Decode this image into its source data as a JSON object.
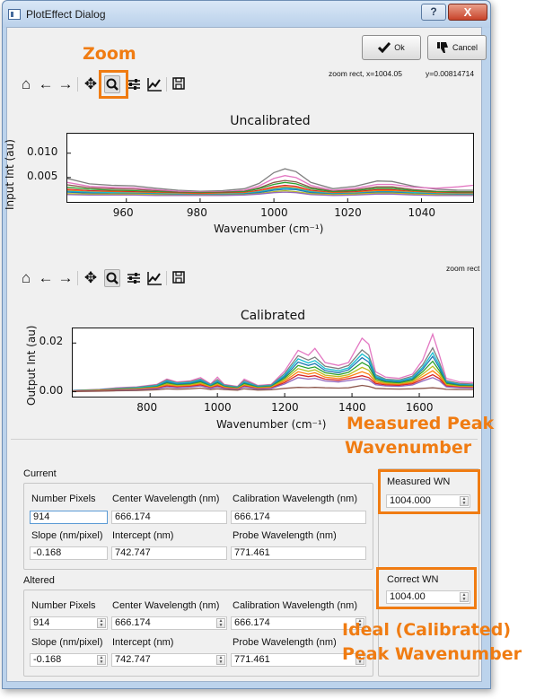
{
  "window": {
    "title": "PlotEffect Dialog",
    "help_symbol": "?",
    "close_symbol": "X"
  },
  "buttons": {
    "ok_label": "Ok",
    "cancel_label": "Cancel"
  },
  "status": {
    "top_left": "zoom rect, x=1004.05",
    "top_right": "y=0.00814714",
    "bottom": "zoom rect"
  },
  "toolbar_icons": [
    "home-icon",
    "back-arrow-icon",
    "forward-arrow-icon",
    "pan-icon",
    "zoom-icon",
    "configure-subplots-icon",
    "edit-axes-icon",
    "save-icon"
  ],
  "annotations": {
    "zoom": "Zoom",
    "measured_line1": "Measured Peak",
    "measured_line2": "Wavenumber",
    "ideal_line1": "Ideal (Calibrated)",
    "ideal_line2": "Peak Wavenumber",
    "color": "#f07c12"
  },
  "chart_data": [
    {
      "type": "line",
      "title": "Uncalibrated",
      "xlabel": "Wavenumber (cm⁻¹)",
      "ylabel": "Input Int (au)",
      "xlim": [
        944,
        1054
      ],
      "ylim": [
        0.0,
        0.014
      ],
      "x_ticks": [
        960,
        980,
        1000,
        1020,
        1040
      ],
      "y_ticks": [
        0.005,
        0.01
      ],
      "x_tick_labels": [
        "960",
        "980",
        "1000",
        "1020",
        "1040"
      ],
      "y_tick_labels": [
        "0.005",
        "0.010"
      ],
      "x": [
        944,
        950,
        956,
        962,
        968,
        974,
        980,
        986,
        992,
        996,
        1000,
        1003,
        1006,
        1010,
        1016,
        1022,
        1028,
        1032,
        1038,
        1044,
        1050,
        1054
      ],
      "series": [
        {
          "color": "#7f7f7f",
          "values": [
            0.0048,
            0.0037,
            0.0034,
            0.0033,
            0.0028,
            0.0024,
            0.0022,
            0.0023,
            0.0027,
            0.0038,
            0.006,
            0.0068,
            0.0062,
            0.004,
            0.0027,
            0.0032,
            0.0043,
            0.0042,
            0.0032,
            0.0026,
            0.0024,
            0.0024
          ]
        },
        {
          "color": "#e377c2",
          "values": [
            0.004,
            0.0032,
            0.003,
            0.0029,
            0.0025,
            0.0022,
            0.002,
            0.0021,
            0.0024,
            0.0033,
            0.0048,
            0.0054,
            0.005,
            0.0034,
            0.0024,
            0.0028,
            0.0036,
            0.0036,
            0.003,
            0.0028,
            0.0031,
            0.0034
          ]
        },
        {
          "color": "#8c564b",
          "values": [
            0.0035,
            0.0029,
            0.0027,
            0.0026,
            0.0023,
            0.002,
            0.0019,
            0.002,
            0.0022,
            0.0029,
            0.004,
            0.0044,
            0.0041,
            0.003,
            0.0022,
            0.0025,
            0.0031,
            0.0031,
            0.0025,
            0.0022,
            0.0021,
            0.0021
          ]
        },
        {
          "color": "#2ca02c",
          "values": [
            0.003,
            0.0026,
            0.0024,
            0.0023,
            0.0021,
            0.0019,
            0.0018,
            0.0019,
            0.0021,
            0.0027,
            0.0036,
            0.004,
            0.0037,
            0.0027,
            0.0021,
            0.0023,
            0.0028,
            0.0028,
            0.0023,
            0.0021,
            0.002,
            0.002
          ]
        },
        {
          "color": "#d62728",
          "values": [
            0.0026,
            0.0023,
            0.0022,
            0.0021,
            0.0019,
            0.0018,
            0.0017,
            0.0018,
            0.0019,
            0.0024,
            0.0031,
            0.0034,
            0.0032,
            0.0024,
            0.0019,
            0.0021,
            0.0025,
            0.0025,
            0.0021,
            0.0019,
            0.0018,
            0.0018
          ]
        },
        {
          "color": "#ff7f0e",
          "values": [
            0.0024,
            0.0021,
            0.002,
            0.0019,
            0.0018,
            0.0017,
            0.0016,
            0.0017,
            0.0018,
            0.0022,
            0.0028,
            0.0031,
            0.0029,
            0.0022,
            0.0018,
            0.0019,
            0.0023,
            0.0023,
            0.002,
            0.0018,
            0.0017,
            0.0017
          ]
        },
        {
          "color": "#17becf",
          "values": [
            0.0022,
            0.002,
            0.0019,
            0.0018,
            0.0017,
            0.0016,
            0.0015,
            0.0016,
            0.0017,
            0.0021,
            0.0026,
            0.0029,
            0.0027,
            0.0021,
            0.0017,
            0.0018,
            0.0021,
            0.0021,
            0.0019,
            0.0017,
            0.0016,
            0.0016
          ]
        },
        {
          "color": "#1f77b4",
          "values": [
            0.002,
            0.0018,
            0.0017,
            0.0017,
            0.0016,
            0.0015,
            0.0015,
            0.0015,
            0.0016,
            0.0019,
            0.0024,
            0.0026,
            0.0025,
            0.0019,
            0.0016,
            0.0017,
            0.002,
            0.002,
            0.0017,
            0.0016,
            0.0015,
            0.0015
          ]
        },
        {
          "color": "#bcbd22",
          "values": [
            0.0017,
            0.0016,
            0.0016,
            0.0016,
            0.0015,
            0.0014,
            0.0014,
            0.0014,
            0.0015,
            0.0017,
            0.0021,
            0.0023,
            0.0021,
            0.0017,
            0.0015,
            0.0016,
            0.0018,
            0.0018,
            0.0016,
            0.0015,
            0.0014,
            0.0014
          ]
        },
        {
          "color": "#9467bd",
          "values": [
            0.0015,
            0.0014,
            0.0014,
            0.0014,
            0.0013,
            0.0013,
            0.0013,
            0.0013,
            0.0014,
            0.0016,
            0.0019,
            0.002,
            0.0019,
            0.0015,
            0.0013,
            0.0014,
            0.0016,
            0.0016,
            0.0014,
            0.0013,
            0.0013,
            0.0013
          ]
        }
      ]
    },
    {
      "type": "line",
      "title": "Calibrated",
      "xlabel": "Wavenumber (cm⁻¹)",
      "ylabel": "Output Int (au)",
      "xlim": [
        570,
        1760
      ],
      "ylim": [
        -0.002,
        0.026
      ],
      "x_ticks": [
        800,
        1000,
        1200,
        1400,
        1600
      ],
      "y_ticks": [
        0.0,
        0.02
      ],
      "x_tick_labels": [
        "800",
        "1000",
        "1200",
        "1400",
        "1600"
      ],
      "y_tick_labels": [
        "0.00",
        "0.02"
      ],
      "x": [
        570,
        650,
        700,
        760,
        820,
        850,
        880,
        920,
        950,
        980,
        1000,
        1020,
        1060,
        1080,
        1120,
        1160,
        1200,
        1240,
        1270,
        1290,
        1320,
        1360,
        1390,
        1430,
        1450,
        1470,
        1500,
        1540,
        1580,
        1610,
        1640,
        1660,
        1680,
        1720,
        1760
      ],
      "series": [
        {
          "color": "#e377c2",
          "values": [
            0.0005,
            0.001,
            0.0016,
            0.002,
            0.003,
            0.0052,
            0.004,
            0.0045,
            0.0058,
            0.0032,
            0.006,
            0.003,
            0.0022,
            0.0052,
            0.0026,
            0.003,
            0.0085,
            0.017,
            0.015,
            0.0178,
            0.012,
            0.0108,
            0.012,
            0.022,
            0.0195,
            0.0082,
            0.006,
            0.0055,
            0.0072,
            0.013,
            0.0236,
            0.015,
            0.0055,
            0.004,
            0.0038
          ]
        },
        {
          "color": "#7f7f7f",
          "values": [
            0.0005,
            0.0009,
            0.0014,
            0.0018,
            0.0028,
            0.0048,
            0.0037,
            0.0042,
            0.0052,
            0.003,
            0.005,
            0.0028,
            0.002,
            0.0046,
            0.0024,
            0.0028,
            0.0075,
            0.0148,
            0.013,
            0.0142,
            0.0105,
            0.0095,
            0.0108,
            0.0172,
            0.015,
            0.007,
            0.0052,
            0.0048,
            0.0064,
            0.011,
            0.018,
            0.012,
            0.0046,
            0.0034,
            0.0032
          ]
        },
        {
          "color": "#17becf",
          "values": [
            0.0004,
            0.0008,
            0.0012,
            0.0016,
            0.0025,
            0.0044,
            0.0034,
            0.0038,
            0.0048,
            0.0027,
            0.0044,
            0.0025,
            0.0018,
            0.004,
            0.0022,
            0.0025,
            0.0068,
            0.0135,
            0.0118,
            0.0128,
            0.0095,
            0.0086,
            0.0098,
            0.0155,
            0.0136,
            0.0064,
            0.0048,
            0.0044,
            0.0058,
            0.01,
            0.016,
            0.0108,
            0.0042,
            0.003,
            0.0028
          ]
        },
        {
          "color": "#1f77b4",
          "values": [
            0.0004,
            0.0007,
            0.0011,
            0.0014,
            0.0022,
            0.004,
            0.0031,
            0.0034,
            0.0044,
            0.0025,
            0.004,
            0.0023,
            0.0016,
            0.0036,
            0.002,
            0.0023,
            0.0062,
            0.0122,
            0.0108,
            0.0116,
            0.0087,
            0.0078,
            0.009,
            0.014,
            0.0122,
            0.0058,
            0.0044,
            0.004,
            0.0053,
            0.0092,
            0.0145,
            0.0098,
            0.0038,
            0.0028,
            0.0026
          ]
        },
        {
          "color": "#2ca02c",
          "values": [
            0.0003,
            0.0006,
            0.001,
            0.0013,
            0.002,
            0.0036,
            0.0028,
            0.0031,
            0.004,
            0.0022,
            0.0036,
            0.0021,
            0.0015,
            0.0033,
            0.0018,
            0.0021,
            0.0056,
            0.0108,
            0.0096,
            0.0102,
            0.0078,
            0.007,
            0.008,
            0.012,
            0.0105,
            0.0052,
            0.004,
            0.0036,
            0.0048,
            0.0082,
            0.0125,
            0.0086,
            0.0034,
            0.0025,
            0.0023
          ]
        },
        {
          "color": "#bcbd22",
          "values": [
            0.0003,
            0.0006,
            0.0009,
            0.0012,
            0.0018,
            0.0032,
            0.0025,
            0.0028,
            0.0036,
            0.002,
            0.0032,
            0.0019,
            0.0013,
            0.0029,
            0.0016,
            0.0019,
            0.005,
            0.0095,
            0.0084,
            0.009,
            0.0068,
            0.0062,
            0.007,
            0.01,
            0.0088,
            0.0046,
            0.0036,
            0.0032,
            0.0043,
            0.0072,
            0.0105,
            0.0075,
            0.003,
            0.0022,
            0.0021
          ]
        },
        {
          "color": "#ff7f0e",
          "values": [
            0.0002,
            0.0005,
            0.0008,
            0.001,
            0.0016,
            0.0028,
            0.0022,
            0.0025,
            0.0032,
            0.0018,
            0.0028,
            0.0017,
            0.0012,
            0.0026,
            0.0014,
            0.0017,
            0.0044,
            0.0082,
            0.0072,
            0.0078,
            0.006,
            0.0054,
            0.0062,
            0.0082,
            0.0072,
            0.004,
            0.0032,
            0.0029,
            0.0038,
            0.0062,
            0.0086,
            0.0064,
            0.0026,
            0.002,
            0.0019
          ]
        },
        {
          "color": "#d62728",
          "values": [
            0.0002,
            0.0004,
            0.0007,
            0.0009,
            0.0014,
            0.0024,
            0.0019,
            0.0022,
            0.0028,
            0.0016,
            0.0024,
            0.0015,
            0.001,
            0.0023,
            0.0012,
            0.0015,
            0.0038,
            0.007,
            0.0062,
            0.0066,
            0.0052,
            0.0047,
            0.0054,
            0.0066,
            0.0058,
            0.0034,
            0.0028,
            0.0026,
            0.0033,
            0.0052,
            0.007,
            0.0054,
            0.0023,
            0.0018,
            0.0017
          ]
        },
        {
          "color": "#9467bd",
          "values": [
            0.0002,
            0.0003,
            0.0006,
            0.0008,
            0.0012,
            0.002,
            0.0016,
            0.0019,
            0.0024,
            0.0014,
            0.002,
            0.0013,
            0.0009,
            0.002,
            0.0011,
            0.0013,
            0.0032,
            0.0058,
            0.0052,
            0.0055,
            0.0044,
            0.004,
            0.0046,
            0.0054,
            0.0048,
            0.0029,
            0.0024,
            0.0022,
            0.0028,
            0.0044,
            0.0058,
            0.0045,
            0.002,
            0.0016,
            0.0015
          ]
        },
        {
          "color": "#8c564b",
          "values": [
            0.0001,
            0.0002,
            0.0004,
            0.0005,
            0.0008,
            0.0012,
            0.001,
            0.0012,
            0.0015,
            0.0009,
            0.0012,
            0.0009,
            0.0006,
            0.0012,
            0.0007,
            0.0008,
            0.0014,
            0.0018,
            0.0017,
            0.0018,
            0.0016,
            0.0015,
            0.0016,
            0.0026,
            0.0022,
            0.0014,
            0.0012,
            0.0011,
            0.0012,
            0.0014,
            0.0016,
            0.0014,
            0.001,
            0.0009,
            0.0009
          ]
        }
      ]
    }
  ],
  "current": {
    "group_title": "Current",
    "labels": {
      "number_pixels": "Number Pixels",
      "center_wavelength": "Center Wavelength (nm)",
      "calibration_wavelength": "Calibration Wavelength (nm)",
      "slope": "Slope (nm/pixel)",
      "intercept": "Intercept (nm)",
      "probe_wavelength": "Probe Wavelength (nm)"
    },
    "values": {
      "number_pixels": "914",
      "center_wavelength": "666.174",
      "calibration_wavelength": "666.174",
      "slope": "-0.168",
      "intercept": "742.747",
      "probe_wavelength": "771.461"
    }
  },
  "altered": {
    "group_title": "Altered",
    "labels": {
      "number_pixels": "Number Pixels",
      "center_wavelength": "Center Wavelength (nm)",
      "calibration_wavelength": "Calibration Wavelength (nm)",
      "slope": "Slope (nm/pixel)",
      "intercept": "Intercept (nm)",
      "probe_wavelength": "Probe Wavelength (nm)"
    },
    "values": {
      "number_pixels": "914",
      "center_wavelength": "666.174",
      "calibration_wavelength": "666.174",
      "slope": "-0.168",
      "intercept": "742.747",
      "probe_wavelength": "771.461"
    }
  },
  "measured_wn": {
    "label": "Measured WN",
    "value": "1004.000"
  },
  "correct_wn": {
    "label": "Correct WN",
    "value": "1004.00"
  }
}
